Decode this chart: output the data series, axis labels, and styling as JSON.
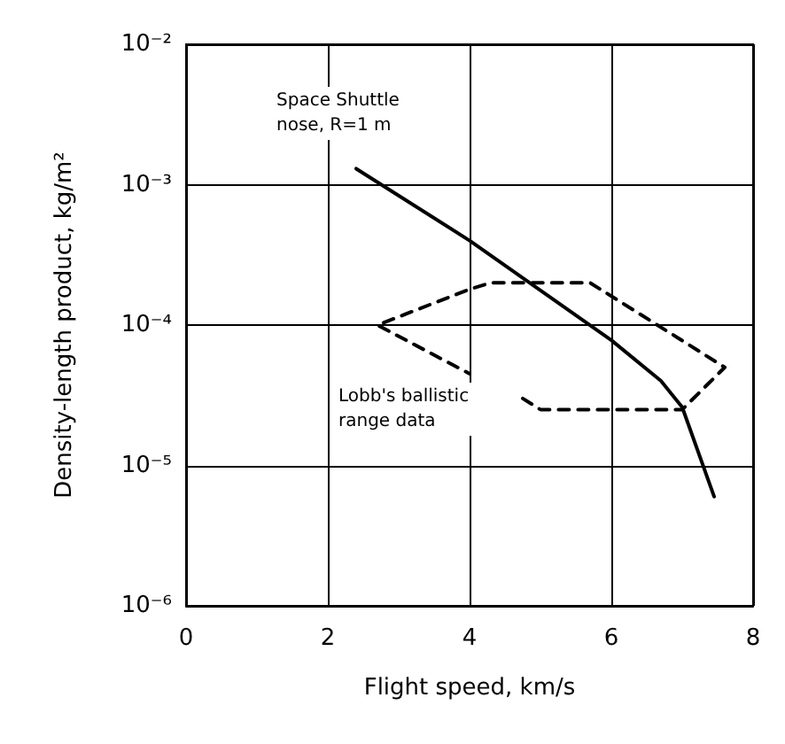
{
  "chart_data": {
    "type": "line",
    "xlabel": "Flight speed, km/s",
    "ylabel": "Density-length product, kg/m²",
    "log": "y",
    "grid": true,
    "marker": "none",
    "xlim": [
      0,
      8
    ],
    "xticks": [
      0,
      2,
      4,
      6,
      8
    ],
    "ylim": [
      1e-06,
      0.01
    ],
    "yticks": [
      {
        "value": 1e-06,
        "label": "10⁻⁶"
      },
      {
        "value": 1e-05,
        "label": "10⁻⁵"
      },
      {
        "value": 0.0001,
        "label": "10⁻⁴"
      },
      {
        "value": 0.001,
        "label": "10⁻³"
      },
      {
        "value": 0.01,
        "label": "10⁻²"
      }
    ],
    "series": [
      {
        "color": "#000000",
        "line_style": "solid",
        "x": [
          2.4,
          4.0,
          6.0,
          6.7,
          7.0,
          7.45
        ],
        "values": [
          0.0013,
          0.0004,
          7.8e-05,
          4e-05,
          2.6e-05,
          6e-06
        ]
      },
      {
        "color": "#000000",
        "line_style": "dashed",
        "x": [
          4.75,
          5.0,
          7.0,
          7.6,
          5.7,
          4.3,
          4.0,
          2.7,
          4.0
        ],
        "values": [
          3e-05,
          2.5e-05,
          2.5e-05,
          5e-05,
          0.0002,
          0.0002,
          0.00018,
          0.0001,
          4.5e-05
        ]
      }
    ],
    "annotations": [
      "Space Shuttle\nnose, R=1 m",
      "Lobb's ballistic\nrange data"
    ]
  }
}
